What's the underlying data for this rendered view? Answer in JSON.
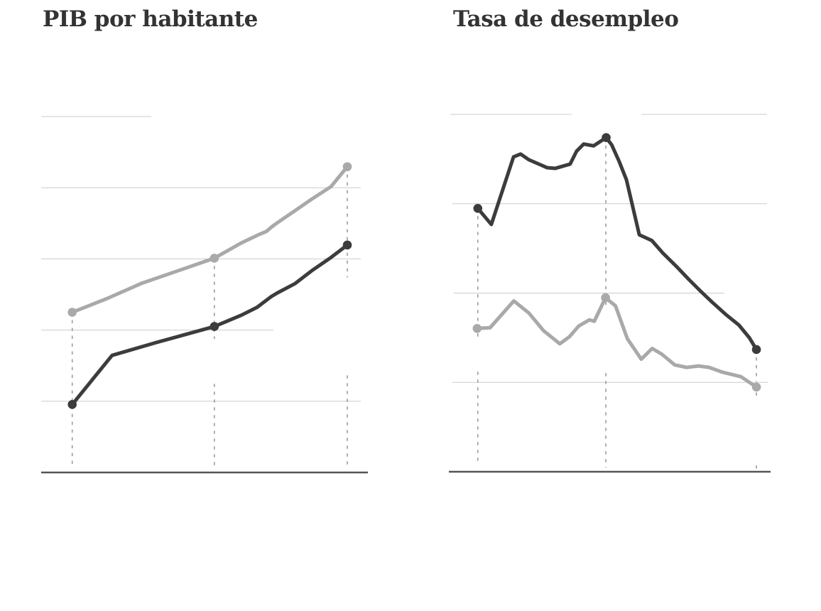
{
  "page": {
    "background": "#FFFFFF",
    "language": "es"
  },
  "styles": {
    "title_color": "#333333",
    "grid_color": "#CBCBCB",
    "axis_color": "#555555",
    "dropline_color": "#9B9B9B",
    "series_dark_color": "#3C3C3C",
    "series_gray_color": "#A9A9A9"
  },
  "chart_data": [
    {
      "type": "line",
      "title": "PIB por habitante",
      "xlabel": "",
      "ylabel": "",
      "legend": "none",
      "value_scale": "relative 0-100 of plot height (no numeric axis labels are visible in the source image)",
      "x_scale": "relative 0-100 of plot width (no x tick labels visible)",
      "ylim": [
        0,
        100
      ],
      "grid": true,
      "gridlines": [
        {
          "value": 100,
          "segments": [
            [
              0.1,
              33.7
            ]
          ]
        },
        {
          "value": 80,
          "segments": [
            [
              0.0,
              97.8
            ]
          ]
        },
        {
          "value": 60,
          "segments": [
            [
              0.0,
              97.8
            ]
          ]
        },
        {
          "value": 40,
          "segments": [
            [
              0.0,
              71.1
            ]
          ]
        },
        {
          "value": 20,
          "segments": [
            [
              0.0,
              97.8
            ]
          ]
        }
      ],
      "series": [
        {
          "name": "serie-gris",
          "color": "#A9A9A9",
          "points": [
            [
              9.5,
              45.0
            ],
            [
              20.0,
              48.8
            ],
            [
              30.9,
              53.2
            ],
            [
              41.7,
              56.6
            ],
            [
              53.0,
              60.2
            ],
            [
              61.3,
              64.5
            ],
            [
              66.3,
              66.7
            ],
            [
              68.9,
              67.7
            ],
            [
              70.7,
              69.1
            ],
            [
              72.2,
              70.1
            ],
            [
              77.6,
              73.5
            ],
            [
              83.0,
              76.9
            ],
            [
              88.7,
              80.3
            ],
            [
              93.7,
              85.9
            ]
          ],
          "marker_indices": [
            0,
            4,
            13
          ]
        },
        {
          "name": "serie-oscura",
          "color": "#3C3C3C",
          "points": [
            [
              9.5,
              19.1
            ],
            [
              21.7,
              32.9
            ],
            [
              35.2,
              36.5
            ],
            [
              53.0,
              41.0
            ],
            [
              61.3,
              44.2
            ],
            [
              66.1,
              46.4
            ],
            [
              70.4,
              49.4
            ],
            [
              72.2,
              50.4
            ],
            [
              77.6,
              53.0
            ],
            [
              83.0,
              56.8
            ],
            [
              88.7,
              60.4
            ],
            [
              93.7,
              63.9
            ]
          ],
          "marker_indices": [
            0,
            3,
            11
          ]
        }
      ],
      "droplines": [
        {
          "x": 9.5,
          "segments": [
            [
              45.0,
              2.0
            ]
          ]
        },
        {
          "x": 53.0,
          "segments": [
            [
              60.2,
              37.5
            ],
            [
              24.9,
              1.2
            ]
          ]
        },
        {
          "x": 93.7,
          "segments": [
            [
              85.9,
              54.8
            ],
            [
              27.3,
              2.0
            ]
          ]
        }
      ]
    },
    {
      "type": "line",
      "title": "Tasa de desempleo",
      "xlabel": "",
      "ylabel": "",
      "legend": "none",
      "value_scale": "relative 0-100 of plot height (no numeric axis labels are visible in the source image)",
      "x_scale": "relative 0-100 of plot width (no x tick labels visible)",
      "ylim": [
        0,
        100
      ],
      "grid": true,
      "gridlines": [
        {
          "value": 100,
          "segments": [
            [
              0.4,
              38.2
            ],
            [
              59.9,
              98.9
            ]
          ]
        },
        {
          "value": 75,
          "segments": [
            [
              1.1,
              98.9
            ]
          ]
        },
        {
          "value": 50,
          "segments": [
            [
              1.5,
              85.7
            ]
          ]
        },
        {
          "value": 25,
          "segments": [
            [
              1.1,
              99.3
            ]
          ]
        }
      ],
      "series": [
        {
          "name": "serie-gris",
          "color": "#A9A9A9",
          "points": [
            [
              8.8,
              40.1
            ],
            [
              12.8,
              40.3
            ],
            [
              20.2,
              47.8
            ],
            [
              24.9,
              44.4
            ],
            [
              29.4,
              39.5
            ],
            [
              34.5,
              35.8
            ],
            [
              37.5,
              37.8
            ],
            [
              40.4,
              40.8
            ],
            [
              43.7,
              42.5
            ],
            [
              45.2,
              42.1
            ],
            [
              48.7,
              48.7
            ],
            [
              51.8,
              46.4
            ],
            [
              55.5,
              37.2
            ],
            [
              59.8,
              31.5
            ],
            [
              63.2,
              34.5
            ],
            [
              66.2,
              32.9
            ],
            [
              70.2,
              29.9
            ],
            [
              73.9,
              29.2
            ],
            [
              77.6,
              29.6
            ],
            [
              80.9,
              29.2
            ],
            [
              84.9,
              27.9
            ],
            [
              90.8,
              26.6
            ],
            [
              95.6,
              23.7
            ]
          ],
          "marker_indices": [
            0,
            10,
            22
          ]
        },
        {
          "name": "serie-oscura",
          "color": "#3C3C3C",
          "points": [
            [
              9.0,
              73.7
            ],
            [
              13.2,
              69.2
            ],
            [
              20.1,
              88.1
            ],
            [
              22.3,
              88.9
            ],
            [
              24.9,
              87.3
            ],
            [
              30.5,
              85.1
            ],
            [
              33.1,
              84.9
            ],
            [
              37.7,
              86.1
            ],
            [
              39.7,
              89.7
            ],
            [
              41.9,
              91.7
            ],
            [
              45.0,
              91.2
            ],
            [
              48.9,
              93.5
            ],
            [
              50.6,
              91.5
            ],
            [
              53.0,
              86.7
            ],
            [
              55.2,
              81.7
            ],
            [
              59.2,
              66.3
            ],
            [
              63.1,
              64.7
            ],
            [
              66.4,
              61.3
            ],
            [
              70.9,
              57.3
            ],
            [
              74.6,
              53.8
            ],
            [
              78.4,
              50.4
            ],
            [
              81.9,
              47.4
            ],
            [
              86.1,
              44.0
            ],
            [
              90.1,
              41.1
            ],
            [
              93.4,
              37.5
            ],
            [
              95.6,
              34.2
            ]
          ],
          "marker_indices": [
            0,
            11,
            25
          ]
        }
      ],
      "droplines": [
        {
          "x": 9.0,
          "segments": [
            [
              73.7,
              37.5
            ],
            [
              28.0,
              1.8
            ]
          ]
        },
        {
          "x": 48.8,
          "segments": [
            [
              93.5,
              46.4
            ],
            [
              27.6,
              1.2
            ]
          ]
        },
        {
          "x": 95.6,
          "segments": [
            [
              34.2,
              25.2
            ],
            [
              22.2,
              20.0
            ],
            [
              1.8,
              0.2
            ]
          ]
        }
      ]
    }
  ]
}
